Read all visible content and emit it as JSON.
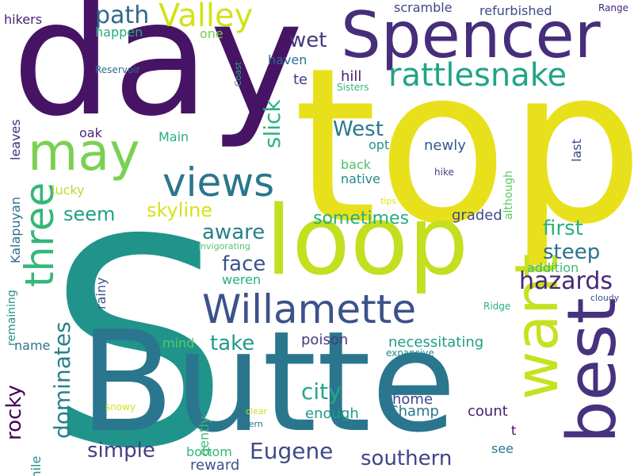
{
  "words": [
    {
      "text": "top",
      "color": "#e9e01c"
    },
    {
      "text": "S",
      "color": "#20948b"
    },
    {
      "text": "day",
      "color": "#471465"
    },
    {
      "text": "Butte",
      "color": "#2a768e"
    },
    {
      "text": "loop",
      "color": "#c3df20"
    },
    {
      "text": "Spencer",
      "color": "#472d7b"
    },
    {
      "text": "best",
      "color": "#46327e"
    },
    {
      "text": "want",
      "color": "#c6e11f"
    },
    {
      "text": "Willamette",
      "color": "#3b528b"
    },
    {
      "text": "may",
      "color": "#7ad151"
    },
    {
      "text": "three",
      "color": "#35b779"
    },
    {
      "text": "views",
      "color": "#2a768e"
    },
    {
      "text": "rattlesnake",
      "color": "#20a486"
    },
    {
      "text": "Valley",
      "color": "#d2e21b"
    },
    {
      "text": "path",
      "color": "#31688e"
    },
    {
      "text": "hazards",
      "color": "#482878"
    },
    {
      "text": "Eugene",
      "color": "#3e4a89"
    },
    {
      "text": "southern",
      "color": "#414487"
    },
    {
      "text": "dominates",
      "color": "#26828e"
    },
    {
      "text": "rocky",
      "color": "#440154"
    },
    {
      "text": "city",
      "color": "#22a884"
    },
    {
      "text": "simple",
      "color": "#433e85"
    },
    {
      "text": "take",
      "color": "#1f9a8a"
    },
    {
      "text": "aware",
      "color": "#277f8e"
    },
    {
      "text": "face",
      "color": "#3b528b"
    },
    {
      "text": "first",
      "color": "#2ab07f"
    },
    {
      "text": "steep",
      "color": "#2c728e"
    },
    {
      "text": "slick",
      "color": "#2db27d"
    },
    {
      "text": "wet",
      "color": "#453882"
    },
    {
      "text": "skyline",
      "color": "#d8e219"
    },
    {
      "text": "seem",
      "color": "#1fa088"
    },
    {
      "text": "sometimes",
      "color": "#28ae80"
    },
    {
      "text": "West",
      "color": "#2a788e"
    },
    {
      "text": "hill",
      "color": "#482173"
    },
    {
      "text": "te",
      "color": "#433e85"
    },
    {
      "text": "newly",
      "color": "#38588c"
    },
    {
      "text": "opt",
      "color": "#1f968b"
    },
    {
      "text": "back",
      "color": "#4ac16d"
    },
    {
      "text": "native",
      "color": "#23898e"
    },
    {
      "text": "graded",
      "color": "#3e4989"
    },
    {
      "text": "addition",
      "color": "#3dbc74"
    },
    {
      "text": "weren",
      "color": "#26ad81"
    },
    {
      "text": "poison",
      "color": "#443a83"
    },
    {
      "text": "necessitating",
      "color": "#1f9e89"
    },
    {
      "text": "home",
      "color": "#3f4788"
    },
    {
      "text": "enough",
      "color": "#1e9b8a"
    },
    {
      "text": "Champ",
      "color": "#2a788e"
    },
    {
      "text": "count",
      "color": "#481d6f"
    },
    {
      "text": "bottom",
      "color": "#35b779"
    },
    {
      "text": "reward",
      "color": "#3b528b"
    },
    {
      "text": "see",
      "color": "#2a788e"
    },
    {
      "text": "t",
      "color": "#450559"
    },
    {
      "text": "name",
      "color": "#2c718e"
    },
    {
      "text": "mind",
      "color": "#5ec962"
    },
    {
      "text": "gently",
      "color": "#3dbc74"
    },
    {
      "text": "mile",
      "color": "#21918c"
    },
    {
      "text": "Main",
      "color": "#29af7f"
    },
    {
      "text": "oak",
      "color": "#482878"
    },
    {
      "text": "lucky",
      "color": "#b5de2b"
    },
    {
      "text": "Kalapuyan",
      "color": "#2e6e8e"
    },
    {
      "text": "leaves",
      "color": "#472d7b"
    },
    {
      "text": "remaining",
      "color": "#21918c"
    },
    {
      "text": "rainy",
      "color": "#3b528b"
    },
    {
      "text": "hikers",
      "color": "#482071"
    },
    {
      "text": "happen",
      "color": "#25ab82"
    },
    {
      "text": "one",
      "color": "#75d054"
    },
    {
      "text": "haven",
      "color": "#2e6d8e"
    },
    {
      "text": "scramble",
      "color": "#404688"
    },
    {
      "text": "refurbished",
      "color": "#3e4a89"
    },
    {
      "text": "Range",
      "color": "#482979"
    },
    {
      "text": "Coast",
      "color": "#21a685"
    },
    {
      "text": "Reservoir",
      "color": "#2d708e"
    },
    {
      "text": "Sisters",
      "color": "#35b779"
    },
    {
      "text": "although",
      "color": "#5ec962"
    },
    {
      "text": "last",
      "color": "#3f4889"
    },
    {
      "text": "hike",
      "color": "#414487"
    },
    {
      "text": "tips",
      "color": "#dde318"
    },
    {
      "text": "invigorating",
      "color": "#52c569"
    },
    {
      "text": "Ridge",
      "color": "#2ab07f"
    },
    {
      "text": "cloudy",
      "color": "#3b528b"
    },
    {
      "text": "expansive",
      "color": "#24868e"
    },
    {
      "text": "snowy",
      "color": "#d2e21b"
    },
    {
      "text": "clear",
      "color": "#c8e020"
    },
    {
      "text": "Fern",
      "color": "#2d708e"
    }
  ]
}
